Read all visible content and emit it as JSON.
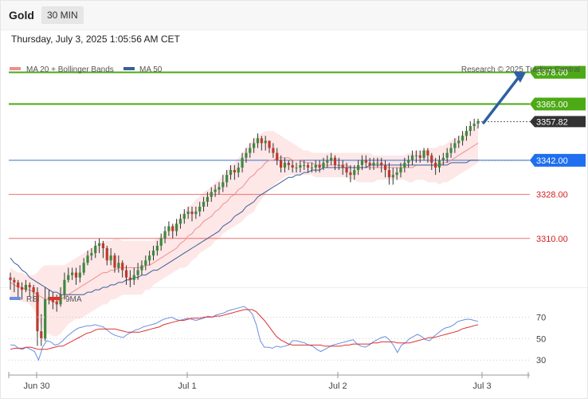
{
  "header": {
    "symbol": "Gold",
    "timeframe": "30 MIN",
    "datetime": "Thursday, July 3, 2025 1:05:56 AM CET"
  },
  "legend": {
    "ma20": "MA 20 + Bollinger Bands",
    "ma50": "MA 50",
    "credit": "Research © 2025 Trading Central"
  },
  "rsi_legend": {
    "rsi": "RSI",
    "ma": "9MA"
  },
  "colors": {
    "candle_up": "#3c8a3c",
    "candle_down": "#c0392b",
    "bollinger_fill": "#fde3e3",
    "ma20": "#f08f8f",
    "ma50": "#3b5f99",
    "resistance": "#4caa15",
    "support": "#e87070",
    "pivot": "#3d6fc8",
    "pivot_label": "#1f6ff0",
    "current_price_label": "#333333",
    "arrow": "#2e5fa3",
    "rsi_line": "#6a8fe0",
    "rsi_ma": "#e03030",
    "grid": "#cccccc"
  },
  "chart_data": [
    {
      "type": "candlestick",
      "title": "Gold",
      "timeframe": "30 MIN",
      "ylim": [
        3290,
        3388
      ],
      "x_tick_labels": [
        "Jun 30",
        "Jul 1",
        "Jul 2",
        "Jul 3"
      ],
      "last_price": 3357.82,
      "levels": [
        {
          "value": 3378.0,
          "label": "3378.00",
          "role": "resistance"
        },
        {
          "value": 3365.0,
          "label": "3365.00",
          "role": "resistance"
        },
        {
          "value": 3342.0,
          "label": "3342.00",
          "role": "pivot"
        },
        {
          "value": 3328.0,
          "label": "3328.00",
          "role": "support"
        },
        {
          "value": 3310.0,
          "label": "3310.00",
          "role": "support"
        }
      ],
      "arrow": {
        "from_price": 3358,
        "to_price": 3378,
        "direction": "up"
      },
      "close": [
        3293,
        3292,
        3290,
        3289,
        3291,
        3290,
        3288,
        3272,
        3269,
        3285,
        3286,
        3284,
        3283,
        3287,
        3293,
        3295,
        3296,
        3294,
        3296,
        3300,
        3303,
        3304,
        3307,
        3308,
        3306,
        3301,
        3303,
        3298,
        3300,
        3297,
        3294,
        3293,
        3295,
        3297,
        3299,
        3301,
        3303,
        3305,
        3307,
        3310,
        3313,
        3315,
        3313,
        3316,
        3318,
        3320,
        3321,
        3320,
        3321,
        3323,
        3325,
        3327,
        3329,
        3330,
        3331,
        3333,
        3336,
        3338,
        3337,
        3339,
        3343,
        3345,
        3347,
        3349,
        3351,
        3349,
        3350,
        3347,
        3345,
        3342,
        3339,
        3341,
        3340,
        3339,
        3339,
        3340,
        3340,
        3339,
        3339,
        3340,
        3339,
        3341,
        3342,
        3343,
        3340,
        3340,
        3339,
        3337,
        3336,
        3338,
        3340,
        3342,
        3341,
        3340,
        3341,
        3341,
        3340,
        3338,
        3335,
        3336,
        3337,
        3339,
        3341,
        3342,
        3344,
        3344,
        3343,
        3346,
        3344,
        3341,
        3339,
        3342,
        3343,
        3345,
        3347,
        3349,
        3350,
        3352,
        3354,
        3356,
        3357,
        3358
      ],
      "high": [
        3296,
        3294,
        3293,
        3292,
        3293,
        3292,
        3291,
        3290,
        3279,
        3290,
        3289,
        3288,
        3287,
        3290,
        3296,
        3298,
        3298,
        3298,
        3299,
        3302,
        3305,
        3306,
        3309,
        3310,
        3309,
        3307,
        3306,
        3304,
        3303,
        3301,
        3299,
        3297,
        3298,
        3300,
        3301,
        3303,
        3305,
        3307,
        3309,
        3312,
        3315,
        3317,
        3316,
        3318,
        3320,
        3322,
        3323,
        3323,
        3323,
        3325,
        3327,
        3329,
        3331,
        3332,
        3333,
        3336,
        3338,
        3340,
        3340,
        3341,
        3345,
        3347,
        3349,
        3351,
        3353,
        3352,
        3352,
        3350,
        3349,
        3347,
        3344,
        3343,
        3342,
        3342,
        3341,
        3342,
        3342,
        3341,
        3341,
        3342,
        3342,
        3343,
        3344,
        3345,
        3344,
        3343,
        3342,
        3341,
        3340,
        3340,
        3342,
        3344,
        3344,
        3343,
        3343,
        3343,
        3343,
        3342,
        3341,
        3339,
        3339,
        3341,
        3343,
        3344,
        3346,
        3346,
        3346,
        3347,
        3347,
        3345,
        3343,
        3344,
        3345,
        3347,
        3349,
        3351,
        3352,
        3354,
        3356,
        3358,
        3359,
        3359
      ],
      "low": [
        3289,
        3288,
        3286,
        3285,
        3288,
        3286,
        3284,
        3266,
        3266,
        3268,
        3283,
        3281,
        3280,
        3282,
        3285,
        3292,
        3293,
        3291,
        3292,
        3295,
        3299,
        3301,
        3302,
        3304,
        3302,
        3299,
        3299,
        3296,
        3296,
        3294,
        3291,
        3290,
        3291,
        3293,
        3295,
        3297,
        3299,
        3301,
        3303,
        3305,
        3308,
        3311,
        3310,
        3311,
        3314,
        3316,
        3318,
        3317,
        3318,
        3319,
        3321,
        3323,
        3325,
        3327,
        3328,
        3329,
        3331,
        3334,
        3334,
        3335,
        3337,
        3341,
        3343,
        3345,
        3347,
        3346,
        3346,
        3345,
        3343,
        3340,
        3337,
        3337,
        3338,
        3337,
        3337,
        3337,
        3338,
        3337,
        3337,
        3337,
        3337,
        3338,
        3339,
        3340,
        3338,
        3338,
        3336,
        3335,
        3333,
        3334,
        3336,
        3338,
        3339,
        3338,
        3338,
        3339,
        3337,
        3335,
        3332,
        3332,
        3334,
        3335,
        3337,
        3339,
        3340,
        3341,
        3341,
        3342,
        3341,
        3338,
        3336,
        3337,
        3340,
        3341,
        3343,
        3345,
        3347,
        3348,
        3350,
        3352,
        3354,
        3355
      ],
      "ma20": [
        3292,
        3291,
        3290,
        3290,
        3289,
        3289,
        3288,
        3287,
        3286,
        3285,
        3285,
        3284,
        3284,
        3285,
        3286,
        3287,
        3288,
        3289,
        3290,
        3291,
        3292,
        3293,
        3294,
        3295,
        3296,
        3296,
        3297,
        3297,
        3298,
        3298,
        3298,
        3298,
        3298,
        3298,
        3298,
        3299,
        3299,
        3300,
        3301,
        3302,
        3303,
        3304,
        3305,
        3306,
        3308,
        3309,
        3311,
        3312,
        3314,
        3315,
        3317,
        3318,
        3319,
        3321,
        3322,
        3324,
        3325,
        3327,
        3328,
        3330,
        3331,
        3333,
        3335,
        3336,
        3338,
        3339,
        3341,
        3342,
        3342,
        3343,
        3343,
        3343,
        3343,
        3342,
        3342,
        3342,
        3341,
        3341,
        3341,
        3340,
        3340,
        3340,
        3340,
        3340,
        3340,
        3340,
        3340,
        3340,
        3339,
        3339,
        3339,
        3339,
        3339,
        3339,
        3339,
        3339,
        3339,
        3339,
        3339,
        3339,
        3339,
        3339,
        3339,
        3339,
        3339,
        3340,
        3340,
        3340,
        3340,
        3340,
        3340,
        3340,
        3341,
        3341,
        3342,
        3343,
        3344,
        3345,
        3346,
        3347,
        3348,
        3349
      ],
      "ma50": [
        3302,
        3300,
        3299,
        3297,
        3296,
        3294,
        3293,
        3292,
        3291,
        3290,
        3289,
        3288,
        3288,
        3287,
        3287,
        3287,
        3287,
        3287,
        3287,
        3287,
        3288,
        3288,
        3289,
        3289,
        3290,
        3290,
        3291,
        3291,
        3292,
        3292,
        3293,
        3293,
        3294,
        3294,
        3295,
        3295,
        3296,
        3297,
        3297,
        3298,
        3299,
        3300,
        3301,
        3302,
        3303,
        3304,
        3305,
        3306,
        3307,
        3308,
        3309,
        3310,
        3311,
        3312,
        3313,
        3315,
        3316,
        3317,
        3319,
        3320,
        3321,
        3323,
        3324,
        3325,
        3327,
        3328,
        3329,
        3330,
        3331,
        3332,
        3333,
        3334,
        3335,
        3335,
        3336,
        3336,
        3337,
        3337,
        3338,
        3338,
        3338,
        3339,
        3339,
        3339,
        3339,
        3339,
        3339,
        3339,
        3339,
        3339,
        3339,
        3339,
        3339,
        3340,
        3340,
        3340,
        3340,
        3340,
        3340,
        3340,
        3340,
        3340,
        3340,
        3340,
        3340,
        3340,
        3340,
        3340,
        3340,
        3340,
        3340,
        3340,
        3340,
        3340,
        3341,
        3341,
        3341,
        3341,
        3341,
        3342,
        3342,
        3342
      ],
      "bb_upper": [
        3298,
        3297,
        3296,
        3296,
        3295,
        3295,
        3295,
        3296,
        3298,
        3299,
        3299,
        3299,
        3299,
        3299,
        3299,
        3300,
        3301,
        3302,
        3303,
        3304,
        3305,
        3306,
        3307,
        3308,
        3309,
        3309,
        3309,
        3310,
        3310,
        3309,
        3309,
        3309,
        3309,
        3309,
        3309,
        3309,
        3309,
        3309,
        3310,
        3311,
        3312,
        3314,
        3315,
        3317,
        3319,
        3321,
        3323,
        3324,
        3326,
        3327,
        3329,
        3330,
        3331,
        3333,
        3334,
        3336,
        3338,
        3340,
        3341,
        3343,
        3345,
        3347,
        3349,
        3351,
        3352,
        3353,
        3354,
        3354,
        3354,
        3353,
        3352,
        3351,
        3350,
        3349,
        3348,
        3347,
        3346,
        3346,
        3345,
        3345,
        3345,
        3345,
        3345,
        3345,
        3345,
        3345,
        3345,
        3345,
        3345,
        3345,
        3345,
        3345,
        3345,
        3345,
        3344,
        3344,
        3344,
        3344,
        3344,
        3344,
        3344,
        3344,
        3344,
        3345,
        3345,
        3346,
        3346,
        3346,
        3347,
        3347,
        3347,
        3348,
        3348,
        3349,
        3350,
        3351,
        3352,
        3353,
        3354,
        3355,
        3356,
        3357
      ],
      "bb_lower": [
        3286,
        3285,
        3285,
        3284,
        3284,
        3283,
        3281,
        3278,
        3274,
        3271,
        3271,
        3270,
        3270,
        3271,
        3273,
        3275,
        3276,
        3277,
        3277,
        3278,
        3279,
        3280,
        3281,
        3282,
        3283,
        3283,
        3285,
        3285,
        3286,
        3287,
        3287,
        3287,
        3287,
        3287,
        3287,
        3289,
        3289,
        3291,
        3292,
        3293,
        3294,
        3295,
        3296,
        3297,
        3298,
        3298,
        3299,
        3301,
        3302,
        3304,
        3305,
        3306,
        3307,
        3309,
        3310,
        3312,
        3313,
        3314,
        3315,
        3316,
        3317,
        3319,
        3320,
        3321,
        3324,
        3326,
        3328,
        3330,
        3331,
        3333,
        3334,
        3335,
        3336,
        3336,
        3336,
        3336,
        3336,
        3336,
        3336,
        3335,
        3335,
        3335,
        3335,
        3335,
        3335,
        3335,
        3335,
        3335,
        3334,
        3334,
        3333,
        3333,
        3333,
        3333,
        3333,
        3334,
        3334,
        3334,
        3334,
        3334,
        3334,
        3334,
        3334,
        3333,
        3333,
        3334,
        3334,
        3334,
        3333,
        3333,
        3333,
        3332,
        3333,
        3333,
        3334,
        3335,
        3336,
        3337,
        3338,
        3339,
        3340,
        3341
      ]
    },
    {
      "type": "line",
      "title": "RSI",
      "yticks": [
        70,
        50,
        30
      ],
      "ylim": [
        22,
        80
      ],
      "series": [
        {
          "name": "RSI",
          "values": [
            44,
            44,
            41,
            40,
            42,
            40,
            38,
            30,
            42,
            48,
            47,
            44,
            45,
            48,
            52,
            55,
            58,
            60,
            61,
            62,
            62,
            63,
            62,
            61,
            58,
            55,
            53,
            52,
            51,
            54,
            56,
            58,
            59,
            61,
            62,
            63,
            64,
            66,
            68,
            69,
            70,
            68,
            67,
            68,
            69,
            68,
            67,
            68,
            69,
            71,
            70,
            72,
            73,
            74,
            76,
            77,
            78,
            79,
            80,
            77,
            73,
            63,
            48,
            42,
            42,
            41,
            43,
            42,
            43,
            44,
            48,
            48,
            47,
            46,
            44,
            43,
            40,
            38,
            40,
            42,
            44,
            45,
            46,
            47,
            48,
            49,
            45,
            43,
            42,
            44,
            47,
            49,
            51,
            52,
            49,
            44,
            37,
            44,
            46,
            50,
            52,
            54,
            52,
            49,
            48,
            52,
            55,
            58,
            60,
            61,
            63,
            66,
            67,
            68,
            68,
            67,
            66
          ]
        },
        {
          "name": "9MA",
          "values": [
            40,
            41,
            41,
            41,
            42,
            42,
            41,
            40,
            40,
            40,
            41,
            42,
            43,
            43,
            45,
            47,
            49,
            51,
            53,
            55,
            56,
            58,
            59,
            59,
            59,
            59,
            59,
            58,
            57,
            56,
            56,
            56,
            56,
            57,
            58,
            59,
            60,
            61,
            63,
            64,
            65,
            66,
            67,
            67,
            68,
            69,
            69,
            69,
            70,
            70,
            70,
            71,
            71,
            72,
            73,
            74,
            75,
            76,
            77,
            77,
            77,
            75,
            71,
            67,
            62,
            57,
            52,
            49,
            47,
            45,
            44,
            44,
            44,
            44,
            44,
            44,
            44,
            44,
            43,
            43,
            43,
            43,
            43,
            44,
            44,
            45,
            45,
            45,
            45,
            45,
            46,
            46,
            47,
            47,
            47,
            47,
            46,
            46,
            46,
            46,
            47,
            48,
            49,
            50,
            51,
            51,
            52,
            53,
            54,
            55,
            56,
            57,
            59,
            60,
            61,
            62,
            63
          ]
        }
      ]
    }
  ]
}
